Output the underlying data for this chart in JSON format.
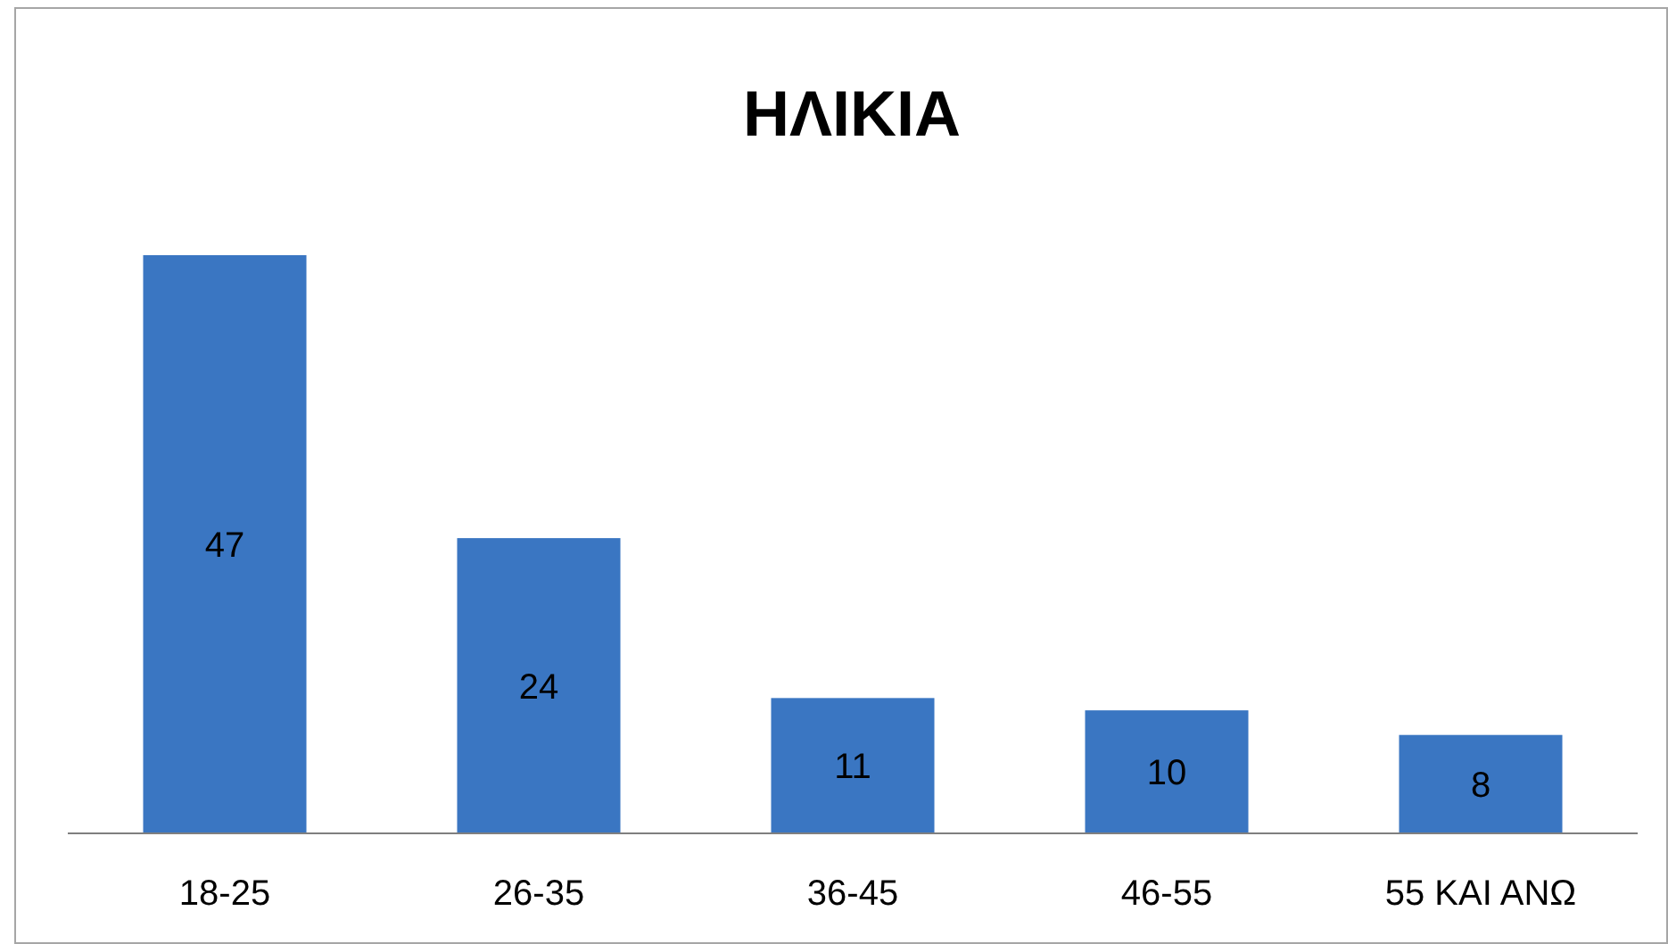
{
  "chart_data": {
    "type": "bar",
    "title": "ΗΛΙΚΙΑ",
    "categories": [
      "18-25",
      "26-35",
      "36-45",
      "46-55",
      "55 ΚΑΙ ΑΝΩ"
    ],
    "values": [
      47,
      24,
      11,
      10,
      8
    ],
    "color": "#3a76c2",
    "data_labels": true
  }
}
